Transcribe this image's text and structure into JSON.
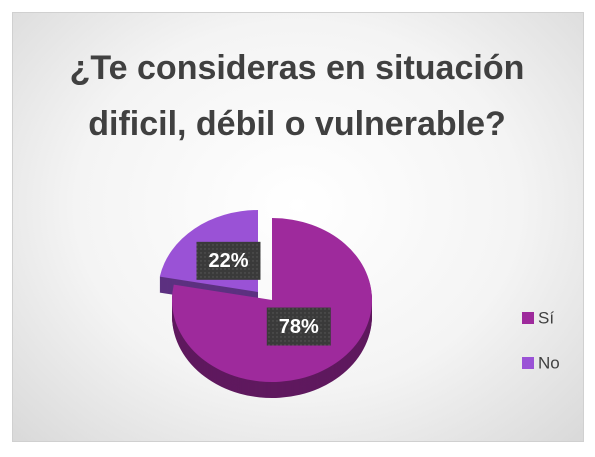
{
  "chart_data": {
    "type": "pie",
    "title": "¿Te consideras en situación dificil, débil o vulnerable?",
    "categories": [
      "Sí",
      "No"
    ],
    "values": [
      78,
      22
    ],
    "value_labels": [
      "78%",
      "22%"
    ],
    "colors": [
      "#9e2a9c",
      "#9a52d6"
    ],
    "legend": "right"
  }
}
